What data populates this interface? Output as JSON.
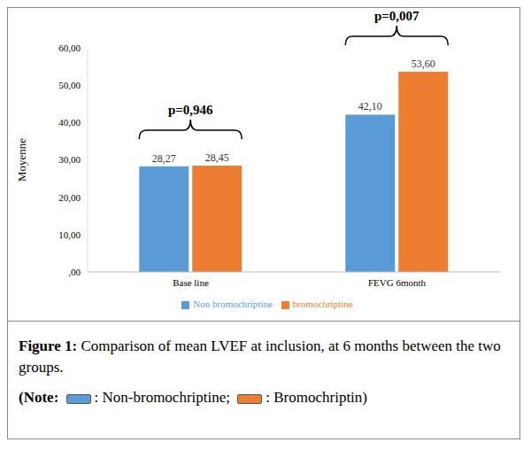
{
  "chart_data": {
    "type": "bar",
    "categories": [
      "Base line",
      "FEVG 6month"
    ],
    "series": [
      {
        "name": "Non bromochriptine",
        "color": "#5b9bd5",
        "values": [
          28.27,
          42.1
        ],
        "value_labels": [
          "28,27",
          "42,10"
        ]
      },
      {
        "name": "bromochriptine",
        "color": "#ed7d31",
        "values": [
          28.45,
          53.6
        ],
        "value_labels": [
          "28,45",
          "53,60"
        ]
      }
    ],
    "ylabel": "Moyenne",
    "ylim": [
      0,
      60
    ],
    "yticks": [
      {
        "value": 0,
        "label": ",00"
      },
      {
        "value": 10,
        "label": "10,00"
      },
      {
        "value": 20,
        "label": "20,00"
      },
      {
        "value": 30,
        "label": "30,00"
      },
      {
        "value": 40,
        "label": "40,00"
      },
      {
        "value": 50,
        "label": "50,00"
      },
      {
        "value": 60,
        "label": "60,00"
      }
    ],
    "annotations": [
      "p=0,946",
      "p=0,007"
    ],
    "data_labels": true,
    "grid": false,
    "legend": "bottom",
    "caption": {
      "label": "Figure 1:",
      "text": " Comparison of mean LVEF at inclusion, at 6 months between the two groups."
    },
    "note": {
      "prefix": "(Note:",
      "entries": [
        ": Non-bromochriptine;",
        ": Bromochriptin)"
      ]
    }
  }
}
